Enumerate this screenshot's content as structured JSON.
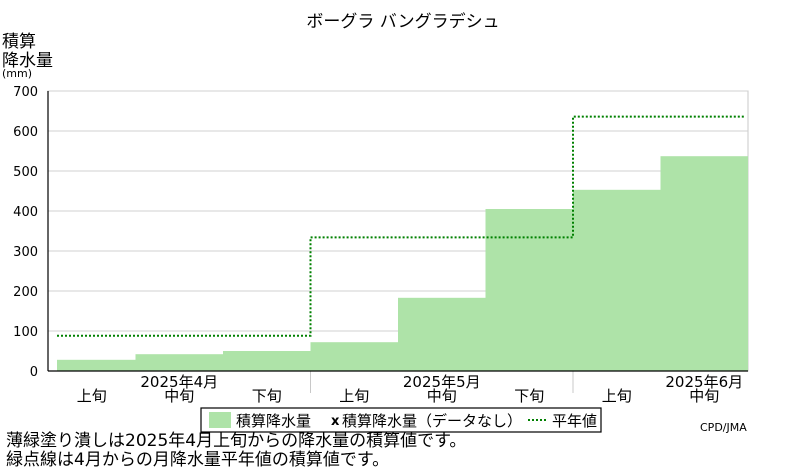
{
  "chart_data": {
    "type": "bar",
    "title": "ボーグラ バングラデシュ",
    "ylabel_lines": [
      "積算",
      "降水量",
      "(mm)"
    ],
    "ylim": [
      0,
      700
    ],
    "yticks": [
      0,
      100,
      200,
      300,
      400,
      500,
      600,
      700
    ],
    "grid": true,
    "categories": [
      "2025年4月上旬",
      "2025年4月中旬",
      "2025年4月下旬",
      "2025年5月上旬",
      "2025年5月中旬",
      "2025年5月下旬",
      "2025年6月上旬",
      "2025年6月中旬"
    ],
    "period_labels": [
      "上旬",
      "中旬",
      "下旬",
      "上旬",
      "中旬",
      "下旬",
      "上旬",
      "中旬"
    ],
    "month_labels": [
      "2025年4月",
      "2025年5月",
      "2025年6月"
    ],
    "series": [
      {
        "name": "積算降水量",
        "type": "bar",
        "color": "#aee3a8",
        "values": [
          28,
          42,
          50,
          72,
          183,
          405,
          453,
          537
        ]
      },
      {
        "name": "平年値",
        "type": "step",
        "color": "#008000",
        "style": "dotted",
        "monthly_steps": [
          88,
          334,
          636
        ]
      }
    ],
    "legend": {
      "position": "bottom",
      "items": [
        "積算降水量",
        "積算降水量（データなし）",
        "平年値"
      ],
      "nodata_marker": "x"
    },
    "credit": "CPD/JMA"
  },
  "notes": [
    "薄緑塗り潰しは2025年4月上旬からの降水量の積算値です。",
    "緑点線は4月からの月降水量平年値の積算値です。"
  ]
}
